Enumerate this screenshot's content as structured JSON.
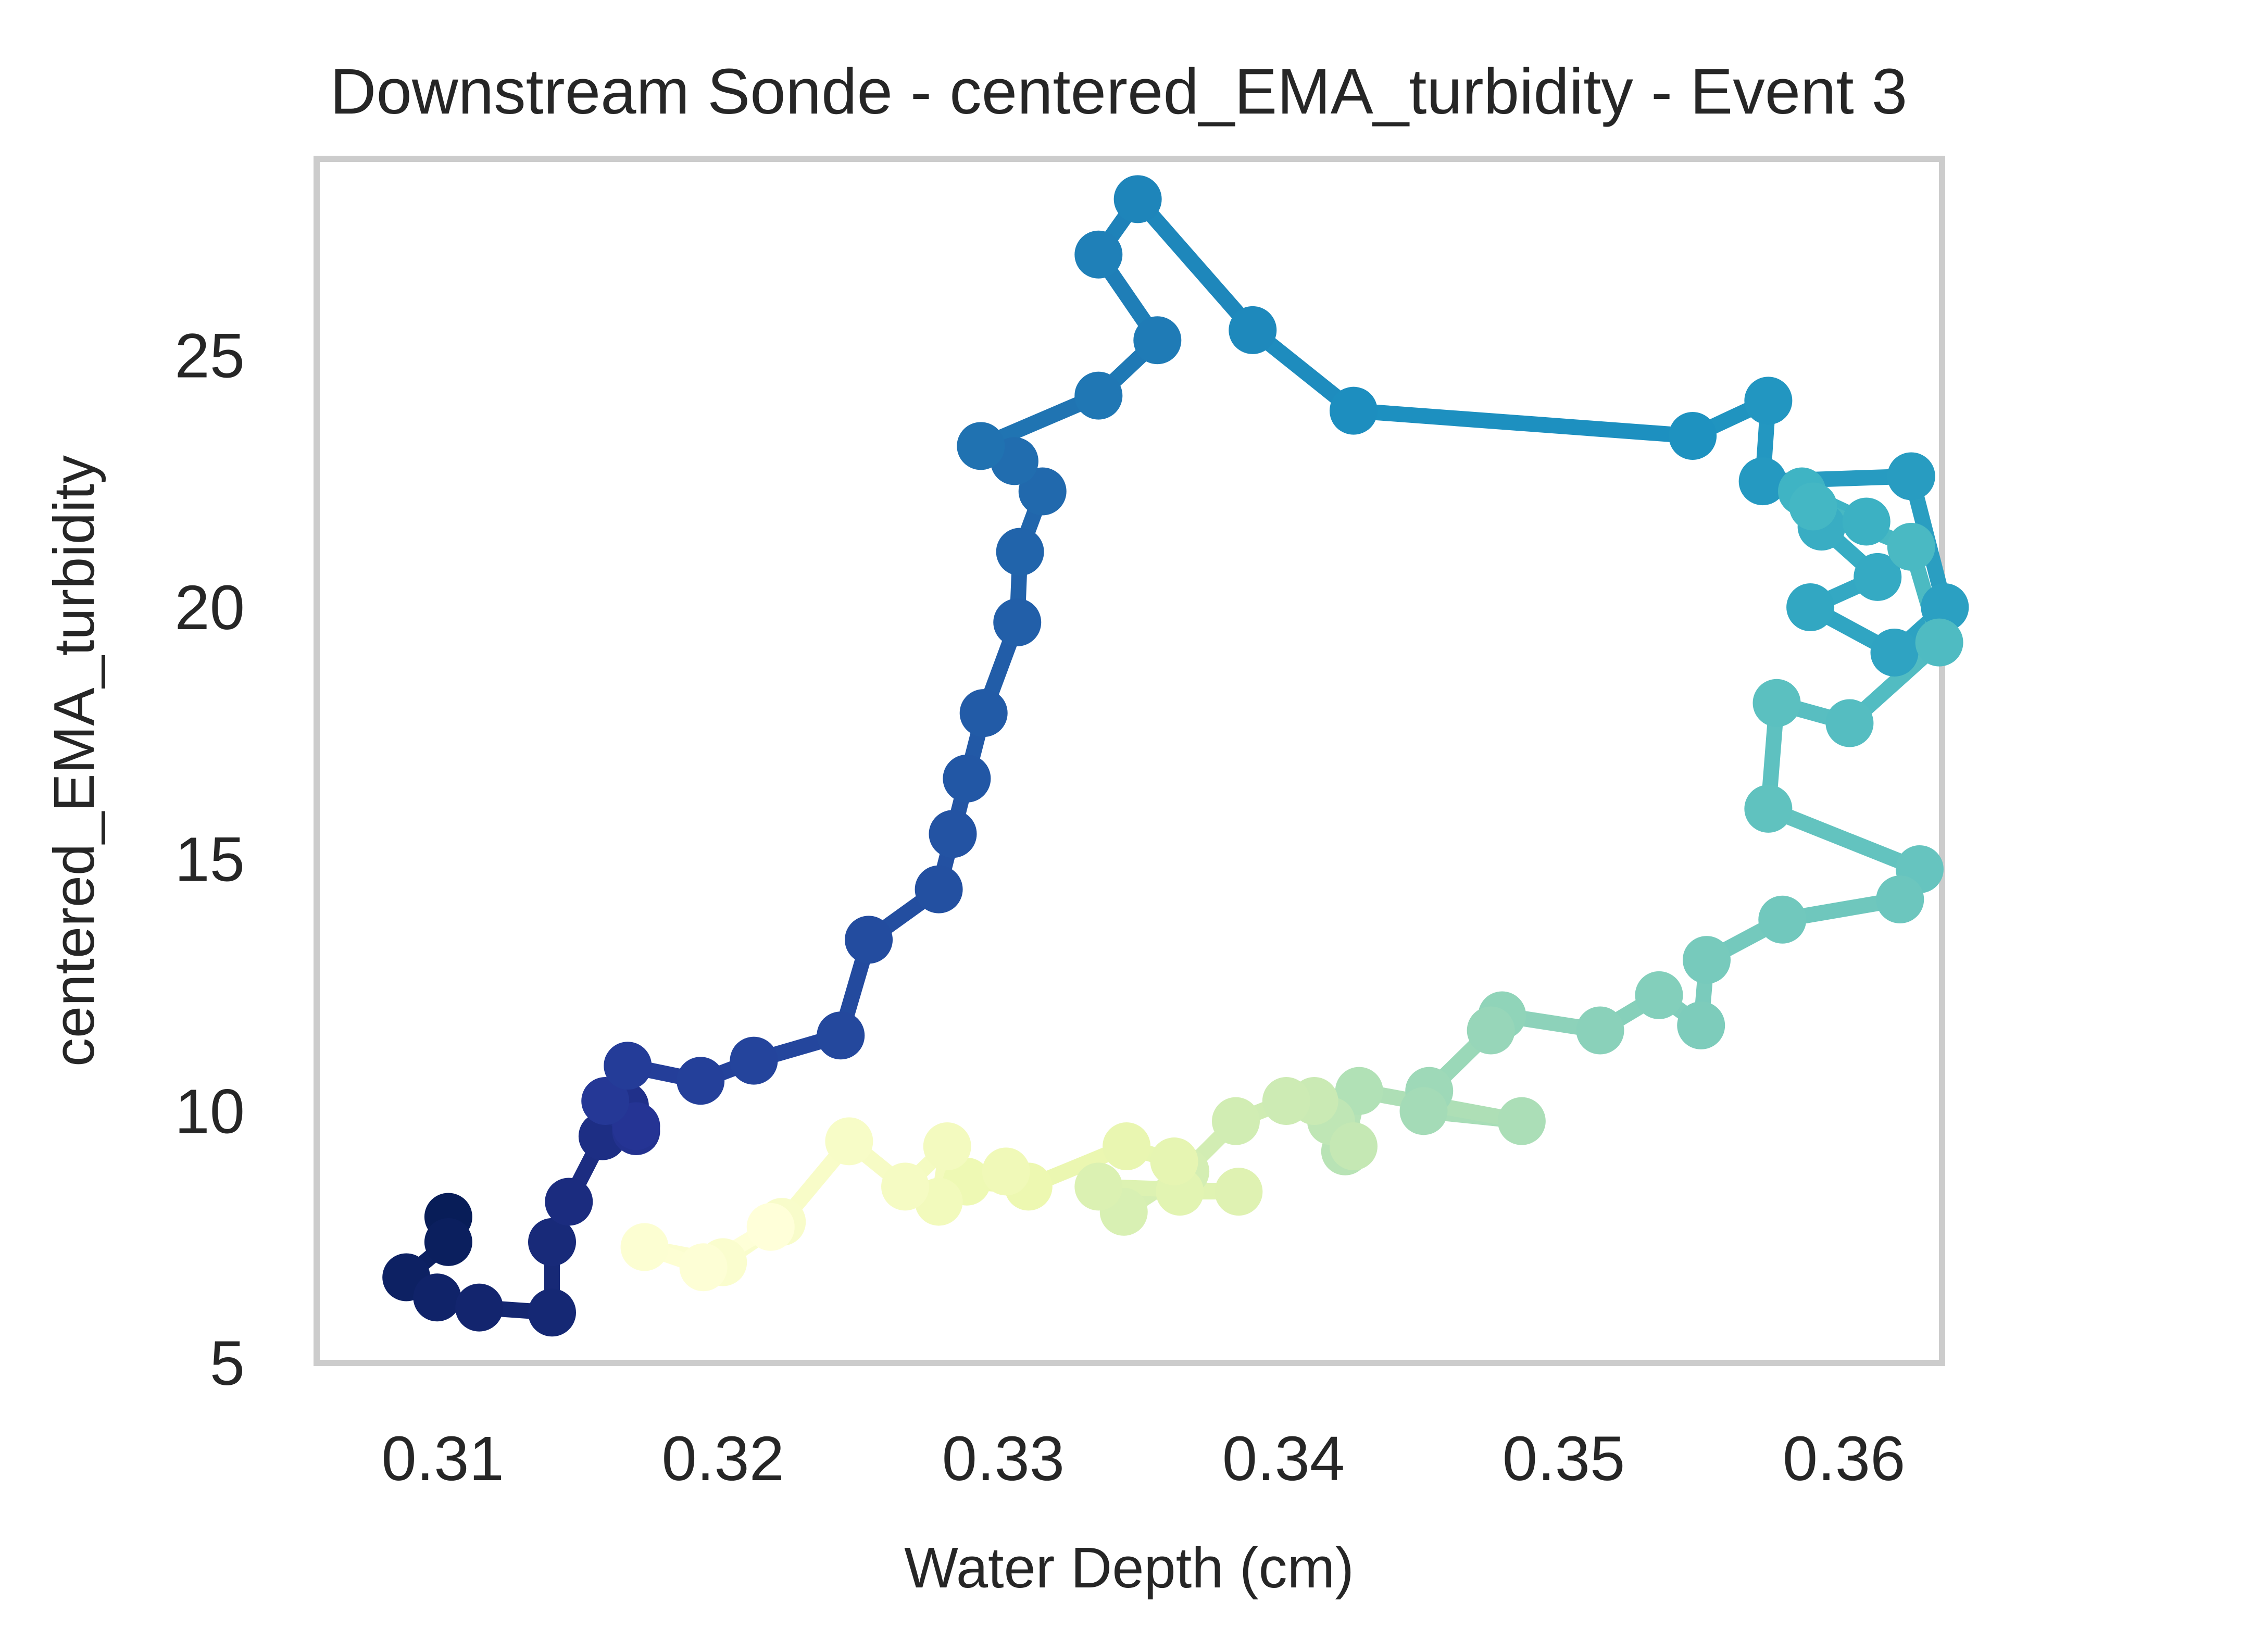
{
  "chart_data": {
    "type": "line",
    "title": "Downstream Sonde - centered_EMA_turbidity - Event 3",
    "xlabel": "Water Depth (cm)",
    "ylabel": "centered_EMA_turbidity",
    "xlim": [
      0.3055,
      0.3635
    ],
    "ylim": [
      5.0,
      28.9
    ],
    "x_ticks": [
      0.31,
      0.32,
      0.33,
      0.34,
      0.35,
      0.36
    ],
    "x_tick_labels": [
      "0.31",
      "0.32",
      "0.33",
      "0.34",
      "0.35",
      "0.36"
    ],
    "y_ticks": [
      5,
      10,
      15,
      20,
      25
    ],
    "y_tick_labels": [
      "5",
      "10",
      "15",
      "20",
      "25"
    ],
    "grid": false,
    "legend": "none",
    "colormap": "YlGnBu_r (point order: dark navy at start to pale yellow at end)",
    "colormap_stops": [
      "#081d58",
      "#253494",
      "#225ea8",
      "#1d91c0",
      "#41b6c4",
      "#7fcdbb",
      "#c7e9b4",
      "#edf8b1",
      "#ffffd9"
    ],
    "frame_color": "#cccccc",
    "series": [
      {
        "x": [
          0.3102,
          0.3102,
          0.3087,
          0.3098,
          0.3113,
          0.3139,
          0.3139,
          0.3145,
          0.3157,
          0.3165,
          0.3169,
          0.3169,
          0.3158,
          0.3166,
          0.3192,
          0.3211,
          0.3242,
          0.3252,
          0.3277,
          0.3282,
          0.3287,
          0.3293,
          0.3305,
          0.3306,
          0.3314,
          0.3304,
          0.3292,
          0.3334,
          0.3355,
          0.3334,
          0.3348,
          0.3389,
          0.3425,
          0.3546,
          0.3573,
          0.3571,
          0.3624,
          0.3636,
          0.3618,
          0.3588,
          0.3612,
          0.3592,
          0.3608,
          0.3585,
          0.3589,
          0.3624,
          0.3634,
          0.3602,
          0.3576,
          0.3573,
          0.3627,
          0.362,
          0.3578,
          0.3551,
          0.3549,
          0.3534,
          0.3513,
          0.3478,
          0.3474,
          0.3452,
          0.345,
          0.3485,
          0.3427,
          0.3422,
          0.3417,
          0.3425,
          0.3411,
          0.3401,
          0.3383,
          0.3365,
          0.3343,
          0.3334,
          0.3384,
          0.3363,
          0.3361,
          0.3344,
          0.3309,
          0.3287,
          0.3301,
          0.3277,
          0.328,
          0.3265,
          0.3245,
          0.3221,
          0.32,
          0.3172,
          0.3193,
          0.3217
        ],
        "y": [
          7.9,
          7.4,
          6.7,
          6.3,
          6.1,
          6.0,
          7.4,
          8.2,
          9.5,
          10.1,
          9.6,
          9.7,
          10.2,
          10.9,
          10.6,
          11.0,
          11.5,
          13.4,
          14.4,
          15.5,
          16.6,
          17.9,
          19.7,
          21.1,
          22.3,
          22.9,
          23.2,
          24.2,
          25.3,
          27.0,
          28.1,
          25.5,
          23.9,
          23.4,
          24.1,
          22.5,
          22.6,
          20.0,
          19.1,
          20.0,
          20.6,
          21.6,
          21.7,
          22.3,
          22.0,
          21.2,
          19.3,
          17.7,
          18.1,
          16.0,
          14.8,
          14.2,
          13.8,
          13.0,
          11.7,
          12.3,
          11.6,
          11.9,
          11.6,
          10.4,
          10.0,
          9.8,
          10.4,
          9.2,
          9.8,
          9.3,
          10.2,
          10.2,
          9.8,
          8.8,
          8.0,
          8.5,
          8.4,
          8.4,
          9.0,
          9.3,
          8.5,
          8.6,
          8.8,
          8.2,
          9.3,
          8.5,
          9.4,
          7.8,
          7.0,
          7.3,
          6.9,
          7.7
        ]
      }
    ]
  }
}
